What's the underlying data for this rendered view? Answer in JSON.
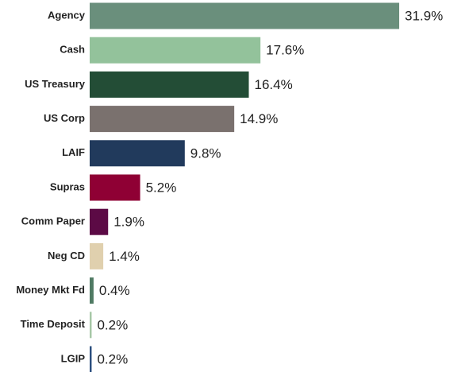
{
  "chart_data": {
    "type": "bar",
    "orientation": "horizontal",
    "categories": [
      "Agency",
      "Cash",
      "US Treasury",
      "US Corp",
      "LAIF",
      "Supras",
      "Comm Paper",
      "Neg CD",
      "Money Mkt Fd",
      "Time Deposit",
      "LGIP"
    ],
    "values": [
      31.9,
      17.6,
      16.4,
      14.9,
      9.8,
      5.2,
      1.9,
      1.4,
      0.4,
      0.2,
      0.2
    ],
    "value_labels": [
      "31.9%",
      "17.6%",
      "16.4%",
      "14.9%",
      "9.8%",
      "5.2%",
      "1.9%",
      "1.4%",
      "0.4%",
      "0.2%",
      "0.2%"
    ],
    "colors": [
      "#6a8f7c",
      "#93c29b",
      "#234d36",
      "#7a716e",
      "#213a5c",
      "#8f0034",
      "#5c0a45",
      "#e0d0ae",
      "#4f7a63",
      "#a6c7a6",
      "#2b4e7e"
    ]
  }
}
